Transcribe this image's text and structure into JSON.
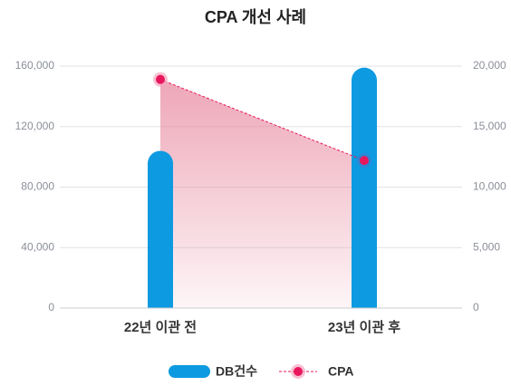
{
  "chart_data": {
    "type": "bar-line",
    "title": "CPA 개선 사례",
    "categories": [
      "22년 이관 전",
      "23년 이관 후"
    ],
    "series": [
      {
        "name": "DB건수",
        "color": "#0d9ae0",
        "values": [
          104000,
          159000
        ]
      },
      {
        "name": "CPA",
        "color": "#e8175d",
        "axis": "y2",
        "values": [
          18900,
          12200
        ]
      }
    ],
    "ylim": [
      0,
      160000
    ],
    "yticks": [
      {
        "value": 0,
        "label": "0"
      },
      {
        "value": 40000,
        "label": "40,000"
      },
      {
        "value": 80000,
        "label": "80,000"
      },
      {
        "value": 120000,
        "label": "120,000"
      },
      {
        "value": 160000,
        "label": "160,000"
      }
    ],
    "y2lim": [
      0,
      20000
    ],
    "y2ticks": [
      {
        "value": 0,
        "label": "0"
      },
      {
        "value": 5000,
        "label": "5,000"
      },
      {
        "value": 10000,
        "label": "10,000"
      },
      {
        "value": 15000,
        "label": "15,000"
      },
      {
        "value": 20000,
        "label": "20,000"
      }
    ],
    "grid": true
  }
}
